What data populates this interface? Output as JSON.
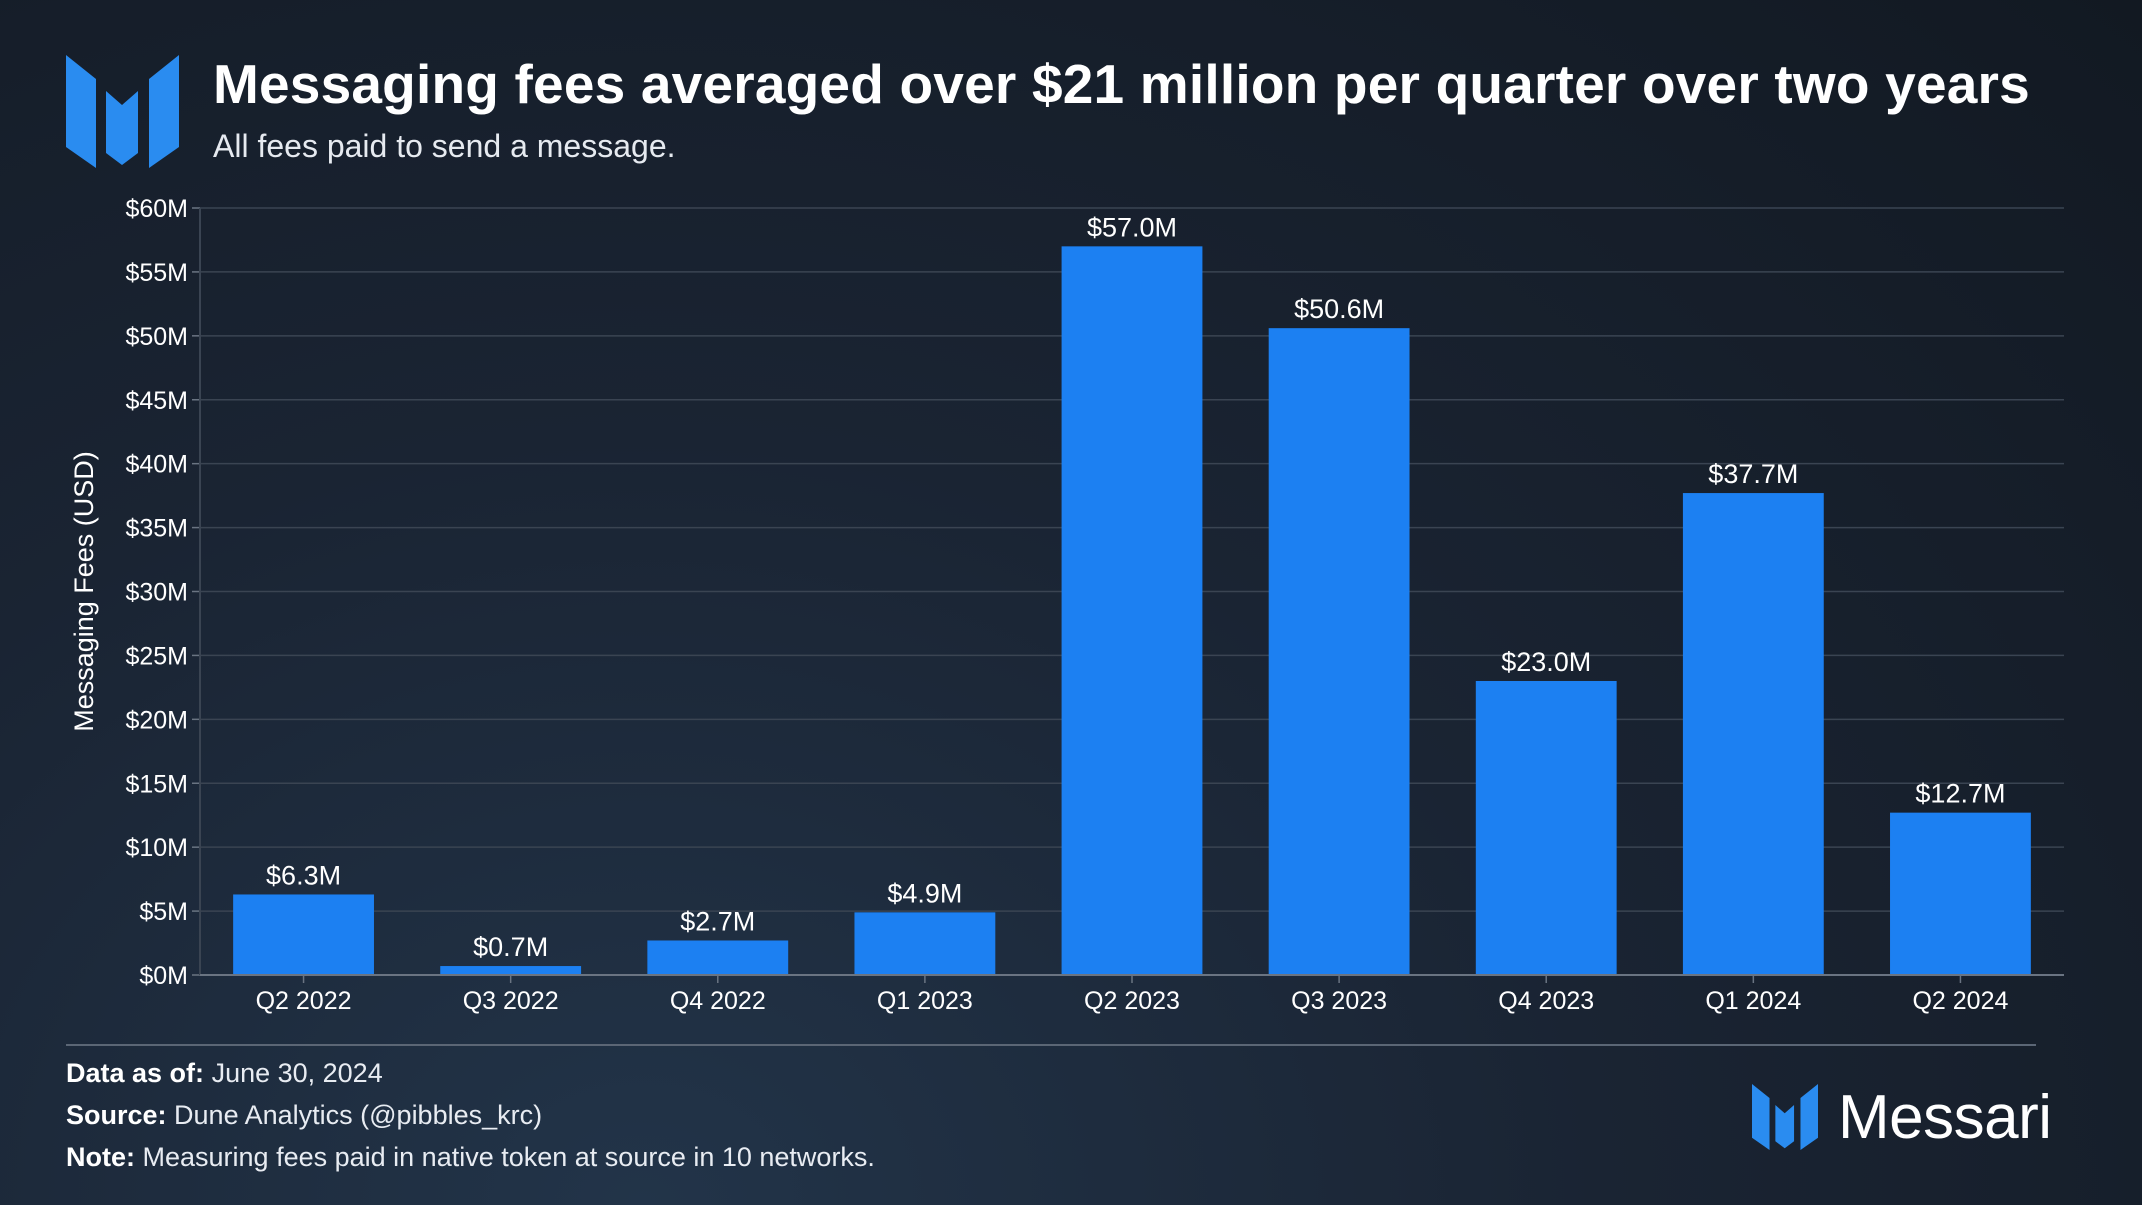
{
  "header": {
    "title": "Messaging fees averaged over $21 million per quarter over two years",
    "subtitle": "All fees paid to send a message."
  },
  "chart_data": {
    "type": "bar",
    "title": "Messaging fees averaged over $21 million per quarter over two years",
    "subtitle": "All fees paid to send a message.",
    "xlabel": "",
    "ylabel": "Messaging Fees (USD)",
    "categories": [
      "Q2 2022",
      "Q3 2022",
      "Q4 2022",
      "Q1 2023",
      "Q2 2023",
      "Q3 2023",
      "Q4 2023",
      "Q1 2024",
      "Q2 2024"
    ],
    "values": [
      6.3,
      0.7,
      2.7,
      4.9,
      57.0,
      50.6,
      23.0,
      37.7,
      12.7
    ],
    "data_labels": [
      "$6.3M",
      "$0.7M",
      "$2.7M",
      "$4.9M",
      "$57.0M",
      "$50.6M",
      "$23.0M",
      "$37.7M",
      "$12.7M"
    ],
    "yticks": [
      0,
      5,
      10,
      15,
      20,
      25,
      30,
      35,
      40,
      45,
      50,
      55,
      60
    ],
    "ytick_labels": [
      "$0M",
      "$5M",
      "$10M",
      "$15M",
      "$20M",
      "$25M",
      "$30M",
      "$35M",
      "$40M",
      "$45M",
      "$50M",
      "$55M",
      "$60M"
    ],
    "ylim": [
      0,
      60
    ],
    "grid": true,
    "legend": "none",
    "bar_color": "#1c80f2"
  },
  "footer": {
    "data_as_of_label": "Data as of:",
    "data_as_of_value": "June 30, 2024",
    "source_label": "Source:",
    "source_value": "Dune Analytics (@pibbles_krc)",
    "note_label": "Note:",
    "note_value": "Measuring fees paid in native token at source in 10 networks.",
    "brand": "Messari"
  },
  "colors": {
    "accent": "#1c80f2",
    "logo": "#2a8cf0",
    "grid": "#3a4452",
    "text": "#ffffff"
  }
}
